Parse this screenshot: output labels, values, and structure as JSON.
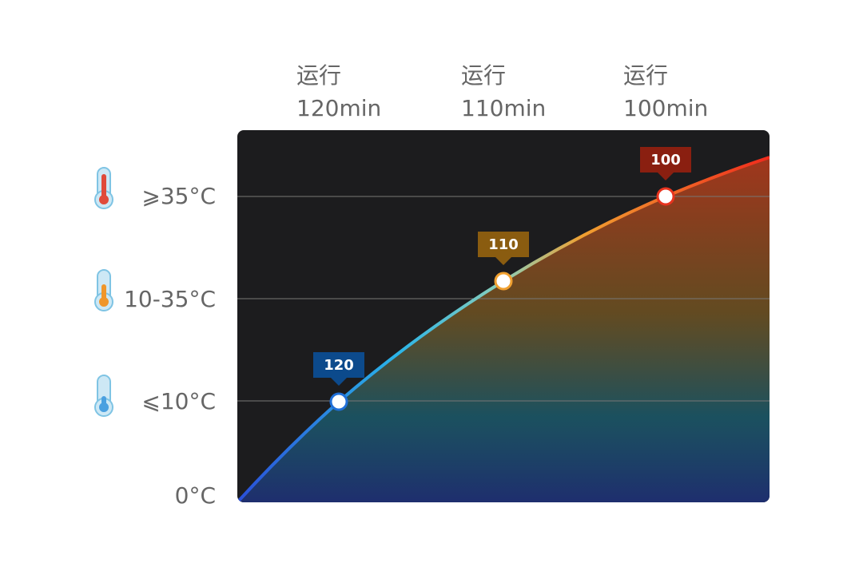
{
  "columns": [
    {
      "label": "运行",
      "time": "120min"
    },
    {
      "label": "运行",
      "time": "110min"
    },
    {
      "label": "运行",
      "time": "100min"
    }
  ],
  "rows": [
    "⩾35°C",
    "10-35°C",
    "⩽10°C",
    "0°C"
  ],
  "markers": [
    "120",
    "110",
    "100"
  ]
}
